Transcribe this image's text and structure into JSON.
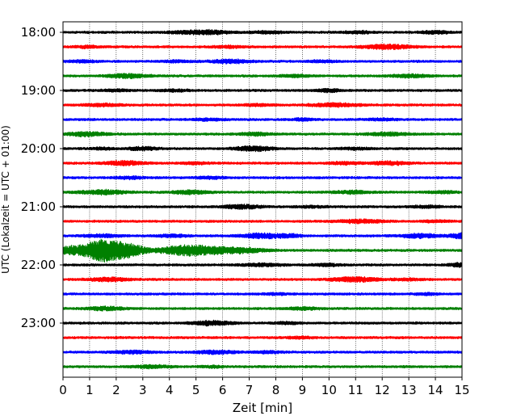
{
  "chart_data": {
    "type": "line",
    "xlabel": "Zeit  [min]",
    "ylabel": "UTC (Lokalzeit = UTC + 01:00)",
    "xlim": [
      0,
      15
    ],
    "x_ticks": [
      "0",
      "1",
      "2",
      "3",
      "4",
      "5",
      "6",
      "7",
      "8",
      "9",
      "10",
      "11",
      "12",
      "13",
      "14",
      "15"
    ],
    "y_ticks": [
      "18:00",
      "19:00",
      "20:00",
      "21:00",
      "22:00",
      "23:00"
    ],
    "grid": "vertical-dotted",
    "trace_interval_min": 15,
    "series": [
      {
        "start": "18:00",
        "color": "#000000",
        "bursts": [
          [
            4.6,
            0.5,
            1.4
          ],
          [
            5.6,
            0.5,
            1.9
          ],
          [
            7.7,
            0.4,
            1.4
          ],
          [
            11.1,
            0.4,
            1.2
          ],
          [
            14.0,
            0.4,
            1.4
          ]
        ]
      },
      {
        "start": "18:15",
        "color": "#ff0000",
        "bursts": [
          [
            0.9,
            0.4,
            1.0
          ],
          [
            6.2,
            0.4,
            1.2
          ],
          [
            12.2,
            0.6,
            2.5
          ]
        ]
      },
      {
        "start": "18:30",
        "color": "#0000ff",
        "bursts": [
          [
            0.7,
            0.4,
            1.0
          ],
          [
            4.3,
            0.4,
            1.0
          ],
          [
            6.3,
            0.5,
            2.0
          ],
          [
            9.7,
            0.4,
            1.0
          ]
        ]
      },
      {
        "start": "18:45",
        "color": "#008000",
        "bursts": [
          [
            2.4,
            0.5,
            2.4
          ],
          [
            8.7,
            0.4,
            1.2
          ],
          [
            13.0,
            0.5,
            1.5
          ]
        ]
      },
      {
        "start": "19:00",
        "color": "#000000",
        "bursts": [
          [
            2.0,
            0.4,
            1.0
          ],
          [
            4.2,
            0.4,
            1.0
          ],
          [
            10.0,
            0.3,
            1.8
          ]
        ]
      },
      {
        "start": "19:15",
        "color": "#ff0000",
        "bursts": [
          [
            1.5,
            0.5,
            1.3
          ],
          [
            7.3,
            0.4,
            1.0
          ],
          [
            10.2,
            0.6,
            2.0
          ]
        ]
      },
      {
        "start": "19:30",
        "color": "#0000ff",
        "bursts": [
          [
            5.5,
            0.4,
            1.0
          ],
          [
            9.0,
            0.3,
            1.2
          ],
          [
            12.0,
            0.4,
            1.0
          ]
        ]
      },
      {
        "start": "19:45",
        "color": "#008000",
        "bursts": [
          [
            0.9,
            0.5,
            2.5
          ],
          [
            7.2,
            0.4,
            1.5
          ],
          [
            12.2,
            0.5,
            1.8
          ]
        ]
      },
      {
        "start": "20:00",
        "color": "#000000",
        "bursts": [
          [
            1.5,
            0.3,
            1.0
          ],
          [
            3.0,
            0.4,
            1.6
          ],
          [
            7.2,
            0.5,
            2.5
          ],
          [
            11.0,
            0.4,
            1.0
          ]
        ]
      },
      {
        "start": "20:15",
        "color": "#ff0000",
        "bursts": [
          [
            2.3,
            0.5,
            2.3
          ],
          [
            5.0,
            0.4,
            1.0
          ],
          [
            10.6,
            0.4,
            1.3
          ],
          [
            12.3,
            0.5,
            1.8
          ]
        ]
      },
      {
        "start": "20:30",
        "color": "#0000ff",
        "bursts": [
          [
            2.5,
            0.4,
            1.2
          ],
          [
            5.5,
            0.4,
            1.0
          ]
        ]
      },
      {
        "start": "20:45",
        "color": "#008000",
        "bursts": [
          [
            1.5,
            0.6,
            2.4
          ],
          [
            4.8,
            0.5,
            2.0
          ],
          [
            10.9,
            0.5,
            1.5
          ],
          [
            14.3,
            0.4,
            1.2
          ]
        ]
      },
      {
        "start": "21:00",
        "color": "#000000",
        "bursts": [
          [
            6.7,
            0.5,
            2.0
          ],
          [
            9.3,
            0.4,
            1.0
          ],
          [
            13.7,
            0.4,
            1.2
          ]
        ]
      },
      {
        "start": "21:15",
        "color": "#ff0000",
        "bursts": [
          [
            11.2,
            0.6,
            1.8
          ],
          [
            14.0,
            0.4,
            1.0
          ]
        ]
      },
      {
        "start": "21:30",
        "color": "#0000ff",
        "bursts": [
          [
            1.5,
            0.5,
            1.5
          ],
          [
            4.1,
            0.4,
            1.5
          ],
          [
            7.5,
            0.5,
            2.8
          ],
          [
            8.5,
            0.3,
            1.5
          ],
          [
            13.4,
            0.5,
            2.2
          ],
          [
            15.0,
            0.3,
            3.0
          ]
        ]
      },
      {
        "start": "21:45",
        "color": "#008000",
        "bursts": [
          [
            0.1,
            0.5,
            4.0
          ],
          [
            1.6,
            0.6,
            13.0
          ],
          [
            2.6,
            0.4,
            4.0
          ],
          [
            4.4,
            0.6,
            3.0
          ],
          [
            5.3,
            0.9,
            4.0
          ],
          [
            6.8,
            0.6,
            2.0
          ]
        ]
      },
      {
        "start": "22:00",
        "color": "#000000",
        "bursts": [
          [
            7.5,
            0.5,
            1.6
          ],
          [
            9.9,
            0.4,
            1.2
          ],
          [
            15.0,
            0.3,
            2.2
          ]
        ]
      },
      {
        "start": "22:15",
        "color": "#ff0000",
        "bursts": [
          [
            1.7,
            0.5,
            2.0
          ],
          [
            11.0,
            0.6,
            2.5
          ],
          [
            13.0,
            0.4,
            1.0
          ]
        ]
      },
      {
        "start": "22:30",
        "color": "#0000ff",
        "bursts": [
          [
            8.0,
            0.3,
            1.0
          ],
          [
            13.7,
            0.3,
            1.0
          ]
        ]
      },
      {
        "start": "22:45",
        "color": "#008000",
        "bursts": [
          [
            1.6,
            0.5,
            1.8
          ],
          [
            9.0,
            0.4,
            1.4
          ]
        ]
      },
      {
        "start": "23:00",
        "color": "#000000",
        "bursts": [
          [
            5.6,
            0.5,
            2.5
          ],
          [
            8.4,
            0.3,
            1.2
          ]
        ]
      },
      {
        "start": "23:15",
        "color": "#ff0000",
        "bursts": [
          [
            8.9,
            0.4,
            1.0
          ]
        ]
      },
      {
        "start": "23:30",
        "color": "#0000ff",
        "bursts": [
          [
            2.6,
            0.5,
            1.5
          ],
          [
            5.7,
            0.5,
            1.8
          ],
          [
            7.7,
            0.4,
            1.2
          ]
        ]
      },
      {
        "start": "23:45",
        "color": "#008000",
        "bursts": [
          [
            3.3,
            0.5,
            1.6
          ],
          [
            5.6,
            0.3,
            1.0
          ]
        ]
      }
    ]
  }
}
